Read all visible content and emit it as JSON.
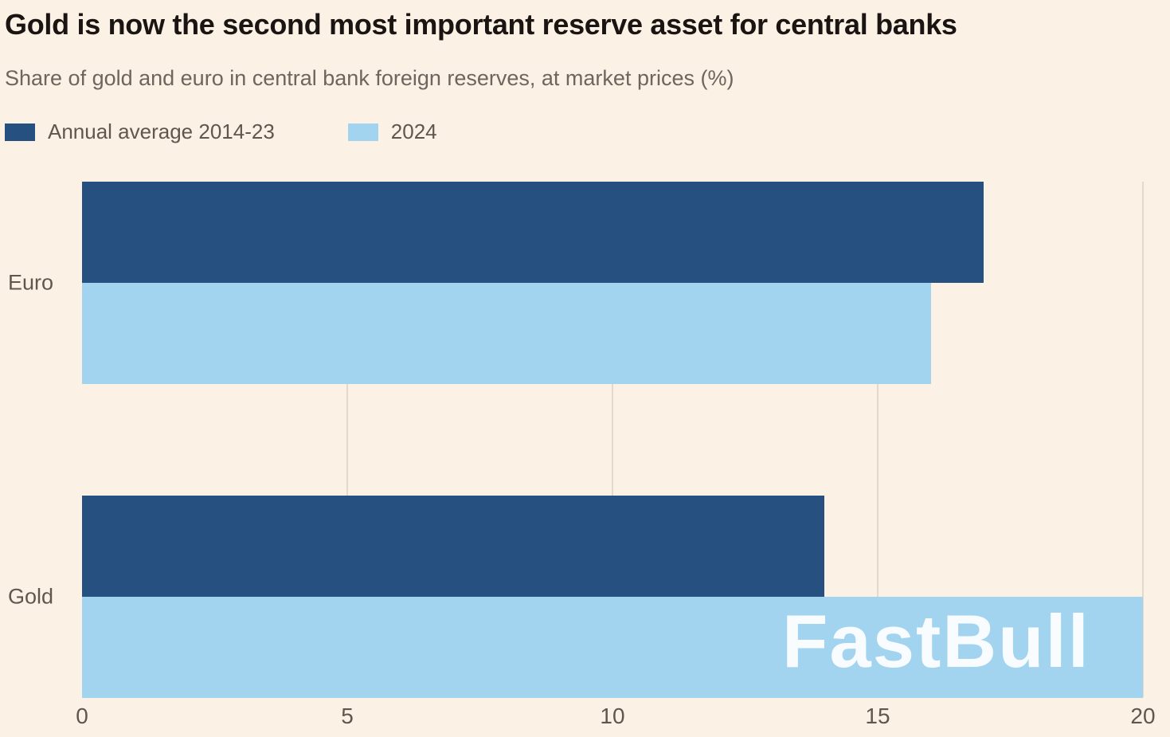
{
  "title": "Gold is now the second most important reserve asset for central banks",
  "subtitle": "Share of gold and euro in central bank foreign reserves, at market prices (%)",
  "legend": [
    {
      "label": "Annual average 2014-23",
      "color": "#25507f"
    },
    {
      "label": "2024",
      "color": "#a2d4ef"
    }
  ],
  "watermark": "FastBull",
  "chart_data": {
    "type": "bar",
    "orientation": "horizontal",
    "title": "Gold is now the second most important reserve asset for central banks",
    "subtitle": "Share of gold and euro in central bank foreign reserves, at market prices (%)",
    "categories": [
      "Euro",
      "Gold"
    ],
    "series": [
      {
        "name": "Annual average 2014-23",
        "color": "#25507f",
        "values": [
          17,
          14
        ]
      },
      {
        "name": "2024",
        "color": "#a2d4ef",
        "values": [
          16,
          20
        ]
      }
    ],
    "xlabel": "",
    "ylabel": "",
    "xlim": [
      0,
      20
    ],
    "xticks": [
      0,
      5,
      10,
      15,
      20
    ],
    "grid": "vertical",
    "legend_position": "top-left"
  },
  "colors": {
    "background": "#fcf1e5",
    "grid": "#e4d9cc",
    "title": "#1a1512",
    "subtitle": "#6d655e",
    "axis_label": "#5f574e"
  }
}
